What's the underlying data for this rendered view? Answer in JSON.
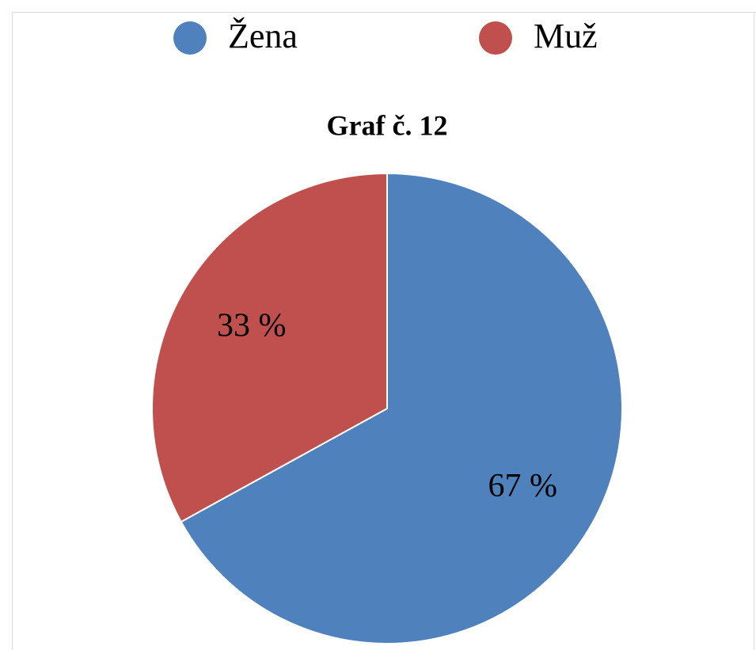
{
  "chart_data": {
    "type": "pie",
    "title": "Graf č. 12",
    "categories": [
      "Žena",
      "Muž"
    ],
    "values": [
      67,
      33
    ],
    "value_labels": [
      "67 %",
      "33 %"
    ],
    "colors": [
      "#4f81bd",
      "#c0504d"
    ],
    "legend": "top"
  }
}
